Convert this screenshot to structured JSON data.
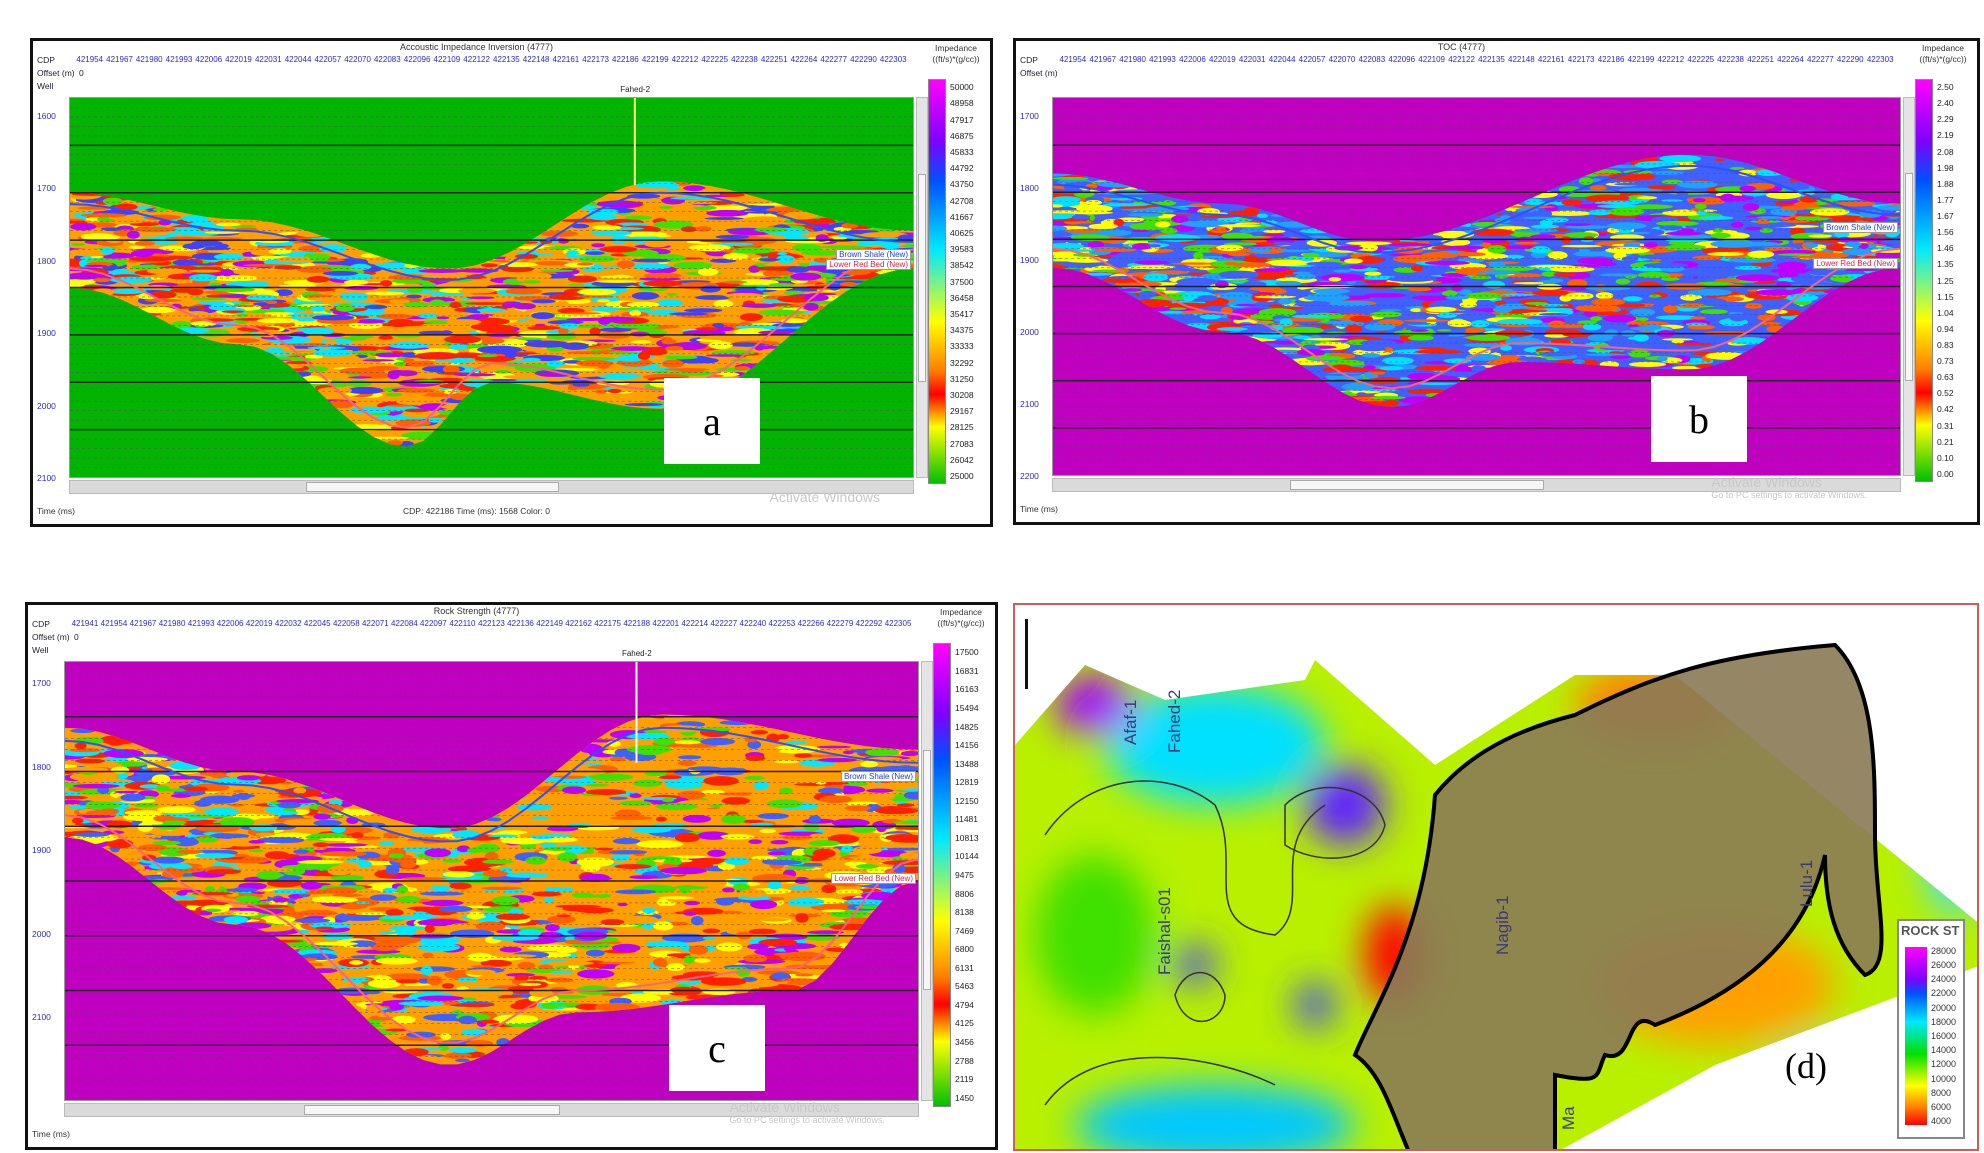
{
  "panels": {
    "a": {
      "title": "Accoustic Impedance Inversion (4777)",
      "cdp_label": "CDP",
      "offset_label": "Offset (m)",
      "offset_value": "0",
      "well_label": "Well",
      "well_name": "Fahed-2",
      "cdp": [
        "421954",
        "421967",
        "421980",
        "421993",
        "422006",
        "422019",
        "422031",
        "422044",
        "422057",
        "422070",
        "422083",
        "422096",
        "422109",
        "422122",
        "422135",
        "422148",
        "422161",
        "422173",
        "422186",
        "422199",
        "422212",
        "422225",
        "422238",
        "422251",
        "422264",
        "422277",
        "422290",
        "422303"
      ],
      "time_ticks": [
        "1600",
        "1700",
        "1800",
        "1900",
        "2000",
        "2100"
      ],
      "time_label": "Time (ms)",
      "status": "CDP: 422186  Time (ms): 1568  Color: 0",
      "colorbar_title": "Impedance",
      "colorbar_unit": "((ft/s)*(g/cc))",
      "colorbar_values": [
        "50000",
        "48958",
        "47917",
        "46875",
        "45833",
        "44792",
        "43750",
        "42708",
        "41667",
        "40625",
        "39583",
        "38542",
        "37500",
        "36458",
        "35417",
        "34375",
        "33333",
        "32292",
        "31250",
        "30208",
        "29167",
        "28125",
        "27083",
        "26042",
        "25000"
      ],
      "background_color": "#00b400",
      "horizons": [
        "Brown Shale (New)",
        "Lower Red Bed (New)"
      ],
      "watermark": "Activate Windows",
      "watermark_sub": "",
      "panel_letter": "a"
    },
    "b": {
      "title": "TOC (4777)",
      "cdp_label": "CDP",
      "offset_label": "Offset (m)",
      "cdp": [
        "421954",
        "421967",
        "421980",
        "421993",
        "422006",
        "422019",
        "422031",
        "422044",
        "422057",
        "422070",
        "422083",
        "422096",
        "422109",
        "422122",
        "422135",
        "422148",
        "422161",
        "422173",
        "422186",
        "422199",
        "422212",
        "422225",
        "422238",
        "422251",
        "422264",
        "422277",
        "422290",
        "422303"
      ],
      "time_ticks": [
        "1700",
        "1800",
        "1900",
        "2000",
        "2100",
        "2200"
      ],
      "time_label": "Time (ms)",
      "colorbar_title": "Impedance",
      "colorbar_unit": "((ft/s)*(g/cc))",
      "colorbar_values": [
        "2.50",
        "2.40",
        "2.29",
        "2.19",
        "2.08",
        "1.98",
        "1.88",
        "1.77",
        "1.67",
        "1.56",
        "1.46",
        "1.35",
        "1.25",
        "1.15",
        "1.04",
        "0.94",
        "0.83",
        "0.73",
        "0.63",
        "0.52",
        "0.42",
        "0.31",
        "0.21",
        "0.10",
        "0.00"
      ],
      "background_color": "#c000c0",
      "horizons": [
        "Brown Shale (New)",
        "Lower Red Bed (New)"
      ],
      "watermark": "Activate Windows",
      "watermark_sub": "Go to PC settings to activate Windows.",
      "panel_letter": "b"
    },
    "c": {
      "title": "Rock Strength (4777)",
      "cdp_label": "CDP",
      "offset_label": "Offset (m)",
      "offset_value": "0",
      "well_label": "Well",
      "well_name": "Fahed-2",
      "cdp": [
        "421941",
        "421954",
        "421967",
        "421980",
        "421993",
        "422006",
        "422019",
        "422032",
        "422045",
        "422058",
        "422071",
        "422084",
        "422097",
        "422110",
        "422123",
        "422136",
        "422149",
        "422162",
        "422175",
        "422188",
        "422201",
        "422214",
        "422227",
        "422240",
        "422253",
        "422266",
        "422279",
        "422292",
        "422305"
      ],
      "time_ticks": [
        "1700",
        "1800",
        "1900",
        "2000",
        "2100"
      ],
      "time_label": "Time (ms)",
      "colorbar_title": "Impedance",
      "colorbar_unit": "((ft/s)*(g/cc))",
      "colorbar_values": [
        "17500",
        "16831",
        "16163",
        "15494",
        "14825",
        "14156",
        "13488",
        "12819",
        "12150",
        "11481",
        "10813",
        "10144",
        "9475",
        "8806",
        "8138",
        "7469",
        "6800",
        "6131",
        "5463",
        "4794",
        "4125",
        "3456",
        "2788",
        "2119",
        "1450"
      ],
      "background_color": "#c000c0",
      "horizons": [
        "Brown Shale (New)",
        "Lower Red Bed (New)"
      ],
      "watermark": "Activate Windows",
      "watermark_sub": "Go to PC settings to activate Windows.",
      "panel_letter": "c"
    }
  },
  "map": {
    "panel_letter": "(d)",
    "wells": [
      "Afaf-1",
      "Fahed-2",
      "Faishal-s01",
      "Nagib-1",
      "Lulu-1",
      "Ma"
    ],
    "legend_title": "ROCK ST",
    "legend_values": [
      "28000",
      "26000",
      "24000",
      "22000",
      "20000",
      "18000",
      "16000",
      "14000",
      "12000",
      "10000",
      "8000",
      "6000",
      "4000"
    ],
    "outline_fill": "#8a7a55"
  },
  "colors": {
    "colorbar_gradient": [
      "#ff00ff",
      "#8000ff",
      "#0050ff",
      "#00e8ff",
      "#00e000",
      "#ffff00",
      "#ff8000",
      "#ff0000",
      "#00c000"
    ]
  }
}
